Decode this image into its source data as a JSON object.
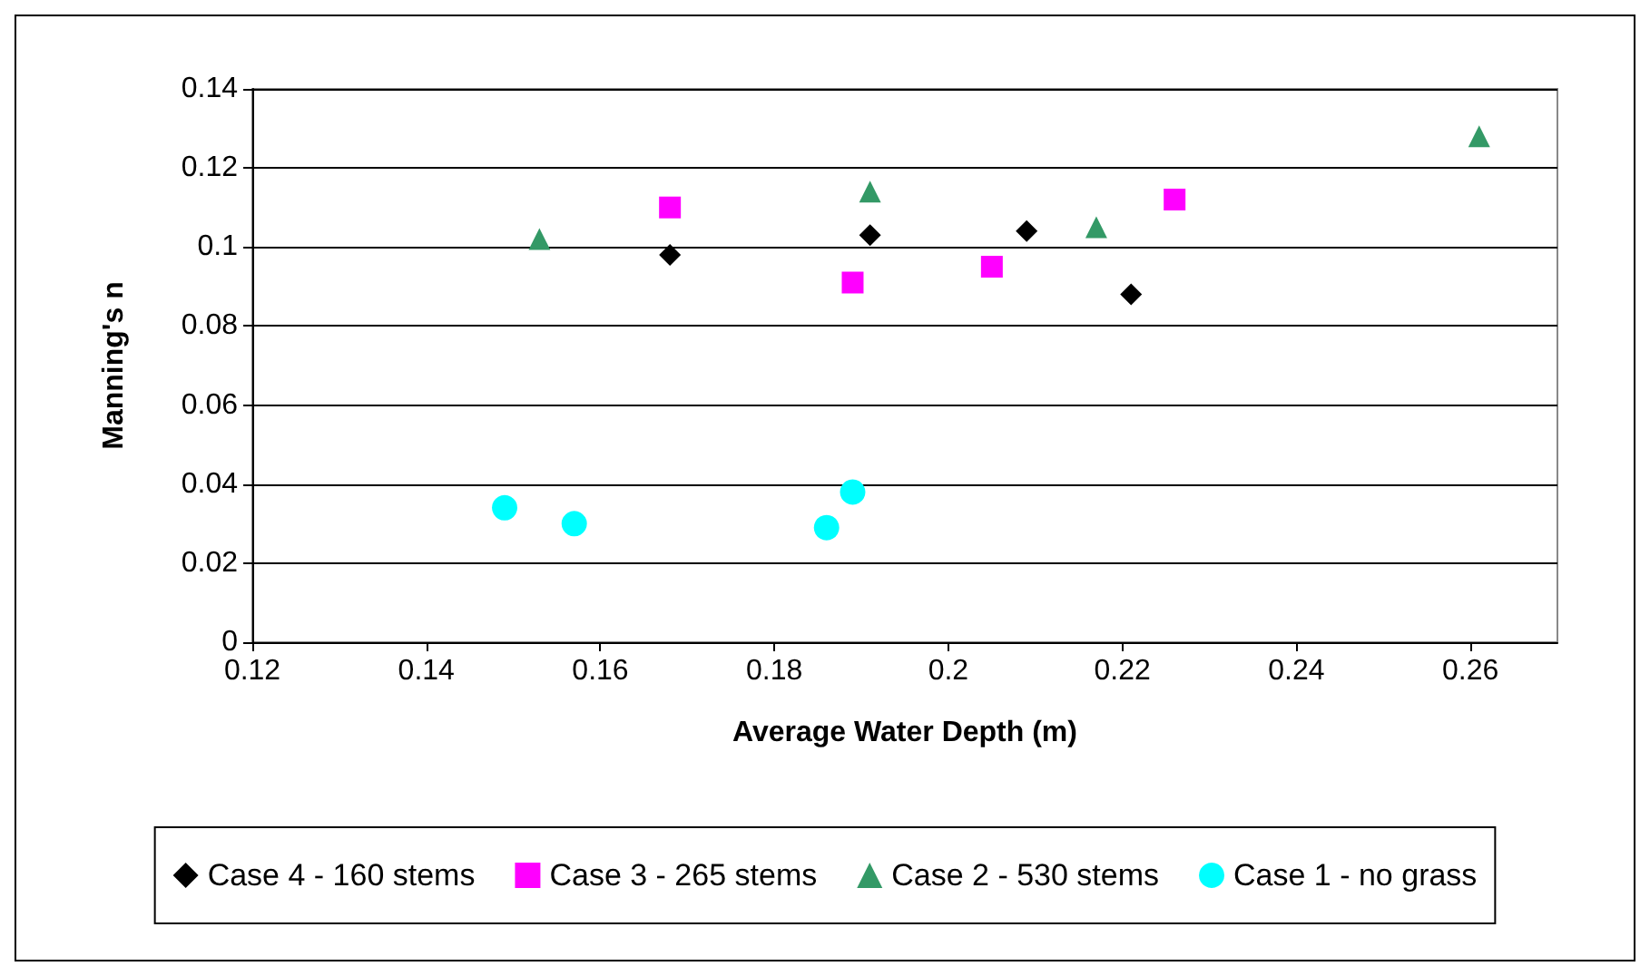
{
  "chart_data": {
    "type": "scatter",
    "xlabel": "Average Water Depth (m)",
    "ylabel": "Manning's n",
    "series": [
      {
        "name": "Case 4 - 160 stems",
        "color": "#000000",
        "marker": "diamond",
        "x": [
          0.168,
          0.191,
          0.209,
          0.221
        ],
        "values": [
          0.098,
          0.103,
          0.104,
          0.088
        ]
      },
      {
        "name": "Case 3 - 265 stems",
        "color": "#ff00ff",
        "marker": "square",
        "x": [
          0.168,
          0.189,
          0.205,
          0.226
        ],
        "values": [
          0.11,
          0.091,
          0.095,
          0.112
        ]
      },
      {
        "name": "Case 2 - 530 stems",
        "color": "#339966",
        "marker": "triangle",
        "x": [
          0.153,
          0.191,
          0.217,
          0.261
        ],
        "values": [
          0.102,
          0.114,
          0.105,
          0.128
        ]
      },
      {
        "name": "Case 1 - no grass",
        "color": "#00ffff",
        "marker": "circle",
        "x": [
          0.149,
          0.157,
          0.186,
          0.189
        ],
        "values": [
          0.034,
          0.03,
          0.029,
          0.038
        ]
      }
    ],
    "xlim": [
      0.12,
      0.27
    ],
    "xticks": [
      0.12,
      0.14,
      0.16,
      0.18,
      0.2,
      0.22,
      0.24,
      0.26
    ],
    "ylim": [
      0,
      0.14
    ],
    "yticks": [
      0,
      0.02,
      0.04,
      0.06,
      0.08,
      0.1,
      0.12,
      0.14
    ],
    "grid": "y",
    "legend": "bottom"
  }
}
